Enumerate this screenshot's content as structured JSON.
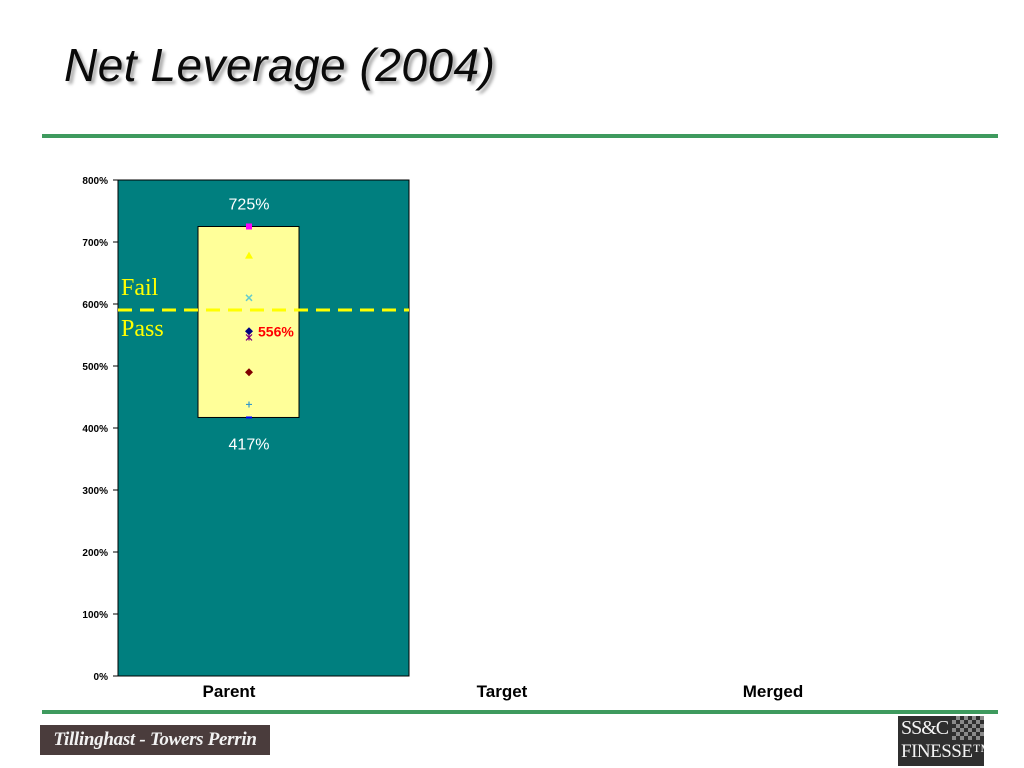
{
  "slide": {
    "title": "Net Leverage (2004)",
    "accent_color": "#3e9a5e"
  },
  "footer": {
    "left_logo_text": "Tillinghast - Towers Perrin",
    "right_logo_line1": "SS&C",
    "right_logo_line2": "FINESSE™"
  },
  "chart_data": {
    "type": "scatter",
    "categories": [
      "Parent",
      "Target",
      "Merged"
    ],
    "y_ticks": [
      "0%",
      "100%",
      "200%",
      "300%",
      "400%",
      "500%",
      "600%",
      "700%",
      "800%"
    ],
    "ylim": [
      0,
      800
    ],
    "grid": false,
    "plot_background": "#007f7f",
    "threshold": {
      "value": 600,
      "color": "#ffff00",
      "label_above": "Fail",
      "label_below": "Pass"
    },
    "range_box": {
      "category": "Parent",
      "low": 417,
      "high": 725,
      "low_label": "417%",
      "high_label": "725%",
      "fill": "#ffff99"
    },
    "points": [
      {
        "category": "Parent",
        "value": 725,
        "marker": "square",
        "color": "#ff00ff"
      },
      {
        "category": "Parent",
        "value": 678,
        "marker": "triangle",
        "color": "#ffff00"
      },
      {
        "category": "Parent",
        "value": 610,
        "marker": "x",
        "color": "#66cccc"
      },
      {
        "category": "Parent",
        "value": 556,
        "marker": "diamond",
        "color": "#000080"
      },
      {
        "category": "Parent",
        "value": 546,
        "marker": "star",
        "color": "#800080"
      },
      {
        "category": "Parent",
        "value": 490,
        "marker": "diamond",
        "color": "#800000"
      },
      {
        "category": "Parent",
        "value": 438,
        "marker": "plus",
        "color": "#3399cc"
      },
      {
        "category": "Parent",
        "value": 417,
        "marker": "dash",
        "color": "#0000ff"
      }
    ],
    "highlight": {
      "category": "Parent",
      "value": 556,
      "label": "556%",
      "color": "#ff0000"
    }
  }
}
